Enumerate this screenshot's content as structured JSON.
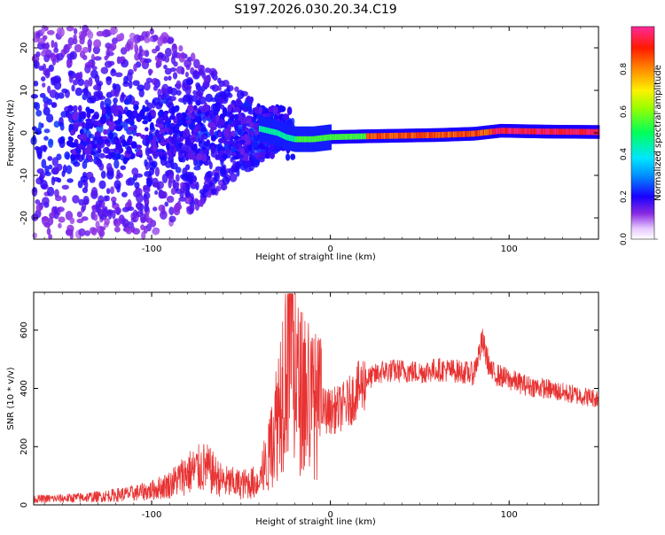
{
  "title": "S197.2026.030.20.34.C19",
  "chart_data": [
    {
      "type": "heatmap",
      "id": "spectrogram",
      "xlabel": "Height of straight line (km)",
      "ylabel": "Frequency (Hz)",
      "xlim": [
        -166,
        150
      ],
      "ylim": [
        -25,
        25
      ],
      "xticks": [
        -100,
        0,
        100
      ],
      "yticks": [
        -20,
        -10,
        0,
        10,
        20
      ],
      "colorbar": {
        "label": "Normalized spectral amplitude",
        "range": [
          0,
          1
        ],
        "ticks": [
          0.0,
          0.2,
          0.4,
          0.6,
          0.8
        ]
      },
      "ridge": {
        "description": "dominant frequency track",
        "x": [
          -40,
          -30,
          -25,
          -20,
          -10,
          0,
          20,
          60,
          80,
          95,
          120,
          150
        ],
        "freq_hz": [
          1,
          0,
          -1,
          -1.5,
          -1.5,
          -1,
          -0.8,
          -0.5,
          -0.2,
          0.5,
          0.3,
          0.2
        ]
      }
    },
    {
      "type": "line",
      "id": "snr",
      "xlabel": "Height of straight line (km)",
      "ylabel": "SNR (10 * v/v)",
      "xlim": [
        -166,
        150
      ],
      "ylim": [
        0,
        730
      ],
      "xticks": [
        -100,
        0,
        100
      ],
      "yticks": [
        0,
        200,
        400,
        600
      ],
      "color": "#e83232",
      "series": [
        {
          "name": "SNR",
          "x": [
            -166,
            -150,
            -130,
            -110,
            -100,
            -90,
            -80,
            -70,
            -60,
            -50,
            -40,
            -35,
            -30,
            -25,
            -22,
            -20,
            -15,
            -10,
            -5,
            0,
            5,
            10,
            15,
            20,
            30,
            40,
            50,
            60,
            70,
            80,
            85,
            90,
            100,
            110,
            120,
            130,
            140,
            150
          ],
          "values": [
            20,
            22,
            28,
            40,
            50,
            70,
            110,
            130,
            80,
            70,
            80,
            150,
            300,
            500,
            700,
            420,
            380,
            350,
            330,
            320,
            330,
            350,
            390,
            430,
            460,
            460,
            455,
            465,
            460,
            450,
            560,
            455,
            430,
            410,
            400,
            385,
            375,
            365
          ]
        }
      ]
    }
  ]
}
